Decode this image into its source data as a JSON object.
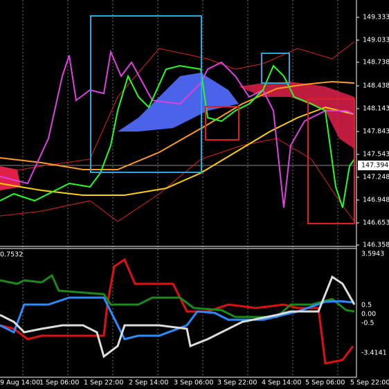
{
  "price_axis": [
    "149.333",
    "149.033",
    "148.738",
    "148.438",
    "148.143",
    "147.843",
    "147.543",
    "147.248",
    "146.948",
    "146.653",
    "146.358"
  ],
  "current_price": "147.394",
  "indicator_axis": {
    "top_left": "0.7532",
    "labels": [
      "3.5943",
      "0.5",
      "0.00",
      "-0.5",
      "-3.4141"
    ]
  },
  "time_axis": [
    "9 Aug 14:00",
    "1 Sep 06:00",
    "1 Sep 22:00",
    "2 Sep 14:00",
    "3 Sep 06:00",
    "3 Sep 22:00",
    "4 Sep 14:00",
    "5 Sep 06:00",
    "5 Sep 22:00"
  ]
}
